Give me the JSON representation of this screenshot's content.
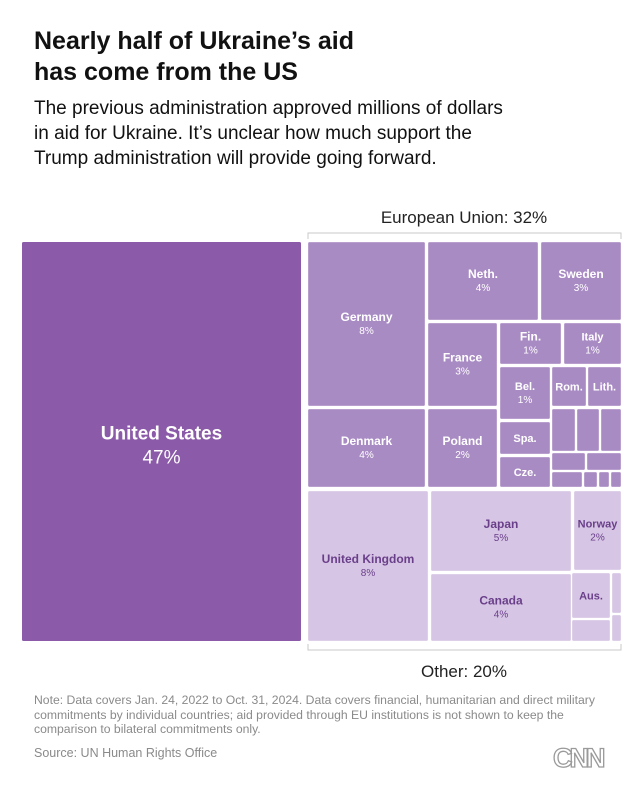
{
  "header": {
    "title_line1": "Nearly half of Ukraine’s aid",
    "title_line2": "has come from the US",
    "subtitle_line1": "The previous administration approved millions of dollars",
    "subtitle_line2": "in aid for Ukraine. It’s unclear how much support the",
    "subtitle_line3": "Trump administration will provide going forward."
  },
  "colors": {
    "us": "#8b5aa8",
    "eu": "#a98bc4",
    "other": "#d6c5e4",
    "eu_label": "#ffffff",
    "other_label": "#6a3f8a"
  },
  "chart_data": {
    "type": "treemap",
    "title": "Nearly half of Ukraine’s aid has come from the US",
    "groups": [
      {
        "name": "United States",
        "label": "United States",
        "value_label": "47%",
        "value": 47
      },
      {
        "name": "European Union",
        "label": "European Union: 32%",
        "value": 32
      },
      {
        "name": "Other",
        "label": "Other: 20%",
        "value": 20
      }
    ],
    "items": [
      {
        "group": "United States",
        "label": "United States",
        "value": 47
      },
      {
        "group": "European Union",
        "label": "Germany",
        "value": 8
      },
      {
        "group": "European Union",
        "label": "Neth.",
        "value": 4
      },
      {
        "group": "European Union",
        "label": "Sweden",
        "value": 3
      },
      {
        "group": "European Union",
        "label": "France",
        "value": 3
      },
      {
        "group": "European Union",
        "label": "Fin.",
        "value": 1
      },
      {
        "group": "European Union",
        "label": "Italy",
        "value": 1
      },
      {
        "group": "European Union",
        "label": "Bel.",
        "value": 1
      },
      {
        "group": "European Union",
        "label": "Rom.",
        "value": null
      },
      {
        "group": "European Union",
        "label": "Lith.",
        "value": null
      },
      {
        "group": "European Union",
        "label": "Denmark",
        "value": 4
      },
      {
        "group": "European Union",
        "label": "Poland",
        "value": 2
      },
      {
        "group": "European Union",
        "label": "Spa.",
        "value": null
      },
      {
        "group": "European Union",
        "label": "Cze.",
        "value": null
      },
      {
        "group": "European Union",
        "label": "",
        "value": null
      },
      {
        "group": "European Union",
        "label": "",
        "value": null
      },
      {
        "group": "European Union",
        "label": "",
        "value": null
      },
      {
        "group": "European Union",
        "label": "",
        "value": null
      },
      {
        "group": "European Union",
        "label": "",
        "value": null
      },
      {
        "group": "European Union",
        "label": "",
        "value": null
      },
      {
        "group": "European Union",
        "label": "",
        "value": null
      },
      {
        "group": "European Union",
        "label": "",
        "value": null
      },
      {
        "group": "European Union",
        "label": "",
        "value": null
      },
      {
        "group": "Other",
        "label": "United Kingdom",
        "value": 8
      },
      {
        "group": "Other",
        "label": "Japan",
        "value": 5
      },
      {
        "group": "Other",
        "label": "Norway",
        "value": 2
      },
      {
        "group": "Other",
        "label": "Canada",
        "value": 4
      },
      {
        "group": "Other",
        "label": "Aus.",
        "value": null
      },
      {
        "group": "Other",
        "label": "",
        "value": null
      },
      {
        "group": "Other",
        "label": "",
        "value": null
      },
      {
        "group": "Other",
        "label": "",
        "value": null
      }
    ]
  },
  "footer": {
    "note_line1": "Note: Data covers Jan. 24, 2022 to Oct. 31, 2024. Data covers financial, humanitarian and direct military",
    "note_line2": "commitments by individual countries; aid provided through EU institutions is not shown to keep the",
    "note_line3": "comparison to bilateral commitments only.",
    "source": "Source: UN Human Rights Office",
    "logo_text": "CNN"
  }
}
